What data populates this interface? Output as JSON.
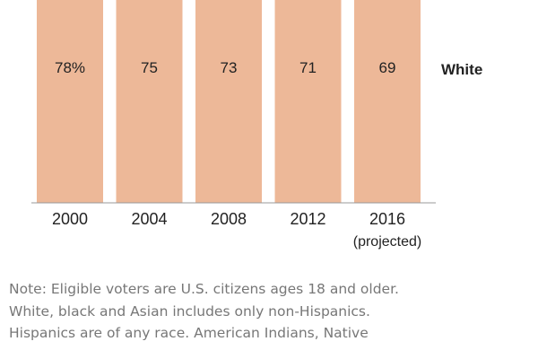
{
  "chart_data": {
    "type": "bar",
    "stacked": true,
    "categories": [
      "2000",
      "2004",
      "2008",
      "2012",
      "2016"
    ],
    "category_sublabels": [
      "",
      "",
      "",
      "",
      "(projected)"
    ],
    "series": [
      {
        "name": "White",
        "values": [
          78,
          75,
          73,
          71,
          69
        ],
        "value_labels": [
          "78%",
          "75",
          "73",
          "71",
          "69"
        ],
        "color": "#EDB898"
      }
    ],
    "ylim": [
      0,
      100
    ],
    "grid": false,
    "legend": "inline-right"
  },
  "note": {
    "lines": [
      "Note: Eligible voters are U.S. citizens ages 18 and older.",
      "White, black and Asian includes only non-Hispanics.",
      "Hispanics are of any race. American Indians, Native"
    ]
  },
  "colors": {
    "bar": "#EDB898",
    "axis": "#999999",
    "text": "#222222",
    "note": "#777777"
  }
}
